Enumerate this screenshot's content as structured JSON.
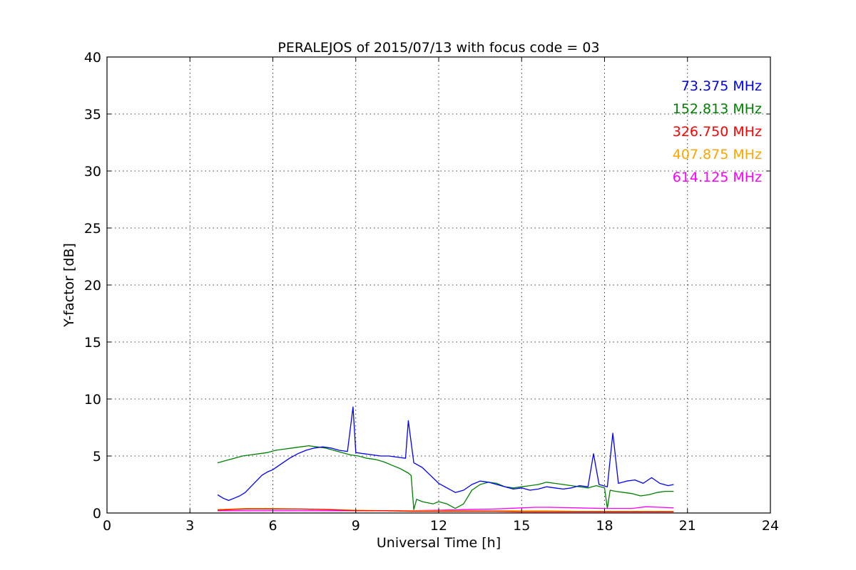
{
  "chart_data": {
    "type": "line",
    "title": "PERALEJOS of 2015/07/13 with focus code = 03",
    "xlabel": "Universal Time [h]",
    "ylabel": "Y-factor [dB]",
    "xlim": [
      0,
      24
    ],
    "ylim": [
      0,
      40
    ],
    "xticks": [
      0,
      3,
      6,
      9,
      12,
      15,
      18,
      21,
      24
    ],
    "yticks": [
      0,
      5,
      10,
      15,
      20,
      25,
      30,
      35,
      40
    ],
    "grid": true,
    "legend_position": "top-right",
    "series": [
      {
        "name": "73.375 MHz",
        "color": "#0000ff",
        "x": [
          4.0,
          4.2,
          4.4,
          4.6,
          4.8,
          5.0,
          5.2,
          5.4,
          5.6,
          5.8,
          6.0,
          6.3,
          6.6,
          6.9,
          7.2,
          7.5,
          7.8,
          8.1,
          8.4,
          8.7,
          8.9,
          9.0,
          9.3,
          9.6,
          9.9,
          10.2,
          10.5,
          10.8,
          10.9,
          11.1,
          11.4,
          11.7,
          12.0,
          12.3,
          12.6,
          12.9,
          13.2,
          13.5,
          13.8,
          14.1,
          14.4,
          14.7,
          15.0,
          15.3,
          15.6,
          15.9,
          16.2,
          16.5,
          16.8,
          17.1,
          17.4,
          17.6,
          17.8,
          18.1,
          18.3,
          18.5,
          18.8,
          19.1,
          19.4,
          19.7,
          20.0,
          20.3,
          20.5
        ],
        "y": [
          1.6,
          1.3,
          1.1,
          1.3,
          1.5,
          1.8,
          2.3,
          2.8,
          3.3,
          3.6,
          3.8,
          4.3,
          4.8,
          5.2,
          5.5,
          5.7,
          5.8,
          5.7,
          5.5,
          5.4,
          9.3,
          5.3,
          5.2,
          5.1,
          5.0,
          5.0,
          4.9,
          4.8,
          8.1,
          4.4,
          4.0,
          3.3,
          2.6,
          2.2,
          1.8,
          2.0,
          2.5,
          2.8,
          2.7,
          2.5,
          2.3,
          2.1,
          2.2,
          2.0,
          2.1,
          2.3,
          2.2,
          2.1,
          2.2,
          2.4,
          2.3,
          5.2,
          2.5,
          2.3,
          7.0,
          2.6,
          2.8,
          2.9,
          2.6,
          3.1,
          2.6,
          2.4,
          2.5
        ]
      },
      {
        "name": "152.813 MHz",
        "color": "#008000",
        "x": [
          4.0,
          4.3,
          4.6,
          4.9,
          5.2,
          5.5,
          5.8,
          6.1,
          6.4,
          6.7,
          7.0,
          7.3,
          7.6,
          7.9,
          8.2,
          8.5,
          8.8,
          9.1,
          9.4,
          9.7,
          10.0,
          10.3,
          10.6,
          10.9,
          11.0,
          11.1,
          11.2,
          11.4,
          11.6,
          11.8,
          12.0,
          12.3,
          12.6,
          12.9,
          13.2,
          13.5,
          13.8,
          14.1,
          14.4,
          14.7,
          15.0,
          15.3,
          15.6,
          15.9,
          16.2,
          16.5,
          16.8,
          17.1,
          17.4,
          17.7,
          18.0,
          18.1,
          18.2,
          18.4,
          18.7,
          19.0,
          19.3,
          19.6,
          19.9,
          20.2,
          20.5
        ],
        "y": [
          4.4,
          4.6,
          4.8,
          5.0,
          5.1,
          5.2,
          5.3,
          5.5,
          5.6,
          5.7,
          5.8,
          5.9,
          5.8,
          5.7,
          5.5,
          5.3,
          5.1,
          5.0,
          4.8,
          4.7,
          4.5,
          4.2,
          3.9,
          3.5,
          3.3,
          0.3,
          1.2,
          1.0,
          0.9,
          0.8,
          1.0,
          0.8,
          0.4,
          0.8,
          2.0,
          2.5,
          2.7,
          2.6,
          2.3,
          2.2,
          2.3,
          2.4,
          2.5,
          2.7,
          2.6,
          2.5,
          2.4,
          2.3,
          2.2,
          2.4,
          2.2,
          0.4,
          2.0,
          1.9,
          1.8,
          1.7,
          1.5,
          1.6,
          1.8,
          1.9,
          1.9
        ]
      },
      {
        "name": "326.750 MHz",
        "color": "#ff0000",
        "x": [
          4.0,
          5.0,
          6.0,
          7.0,
          8.0,
          9.0,
          10.0,
          11.0,
          12.0,
          13.0,
          14.0,
          15.0,
          16.0,
          17.0,
          18.0,
          19.0,
          20.0,
          20.5
        ],
        "y": [
          0.25,
          0.35,
          0.35,
          0.35,
          0.3,
          0.2,
          0.2,
          0.15,
          0.15,
          0.15,
          0.15,
          0.1,
          0.1,
          0.1,
          0.1,
          0.1,
          0.1,
          0.1
        ]
      },
      {
        "name": "407.875 MHz",
        "color": "#ffa500",
        "x": [
          4.0,
          5.0,
          6.0,
          7.0,
          8.0,
          9.0,
          10.0,
          11.0,
          12.0,
          13.0,
          14.0,
          15.0,
          16.0,
          17.0,
          18.0,
          19.0,
          20.0,
          20.5
        ],
        "y": [
          0.3,
          0.4,
          0.4,
          0.35,
          0.3,
          0.25,
          0.2,
          0.2,
          0.2,
          0.2,
          0.2,
          0.2,
          0.2,
          0.15,
          0.15,
          0.15,
          0.15,
          0.15
        ]
      },
      {
        "name": "614.125 MHz",
        "color": "#ff00ff",
        "x": [
          4.0,
          5.0,
          6.0,
          7.0,
          8.0,
          9.0,
          10.0,
          11.0,
          12.0,
          13.0,
          14.0,
          15.0,
          15.5,
          16.0,
          17.0,
          18.0,
          19.0,
          19.5,
          20.0,
          20.5
        ],
        "y": [
          0.2,
          0.2,
          0.2,
          0.2,
          0.2,
          0.2,
          0.2,
          0.2,
          0.25,
          0.3,
          0.35,
          0.45,
          0.5,
          0.5,
          0.45,
          0.4,
          0.4,
          0.55,
          0.5,
          0.45
        ]
      }
    ]
  }
}
